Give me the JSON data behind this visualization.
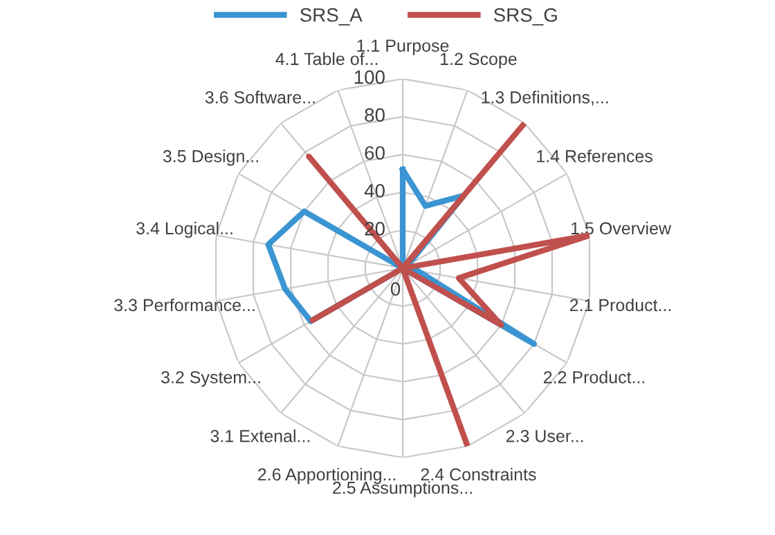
{
  "chart_data": {
    "type": "radar",
    "categories": [
      "1.1 Purpose",
      "1.2 Scope",
      "1.3 Definitions,...",
      "1.4 References",
      "1.5 Overview",
      "2.1 Product...",
      "2.2 Product...",
      "2.3 User...",
      "2.4 Constraints",
      "2.5 Assumptions...",
      "2.6 Apportioning...",
      "3.1 Extenal...",
      "3.2 System...",
      "3.3 Performance...",
      "3.4 Logical...",
      "3.5 Design...",
      "3.6 Software...",
      "4.1 Table of..."
    ],
    "series": [
      {
        "name": "SRS_A",
        "color": "#3a95d2",
        "values": [
          52,
          35,
          50,
          3,
          3,
          8,
          80,
          0,
          0,
          0,
          0,
          0,
          56,
          63,
          72,
          60,
          0,
          0
        ]
      },
      {
        "name": "SRS_G",
        "color": "#c0504d",
        "values": [
          0,
          0,
          100,
          0,
          100,
          30,
          60,
          0,
          100,
          0,
          0,
          0,
          55,
          0,
          0,
          0,
          77,
          0
        ]
      }
    ],
    "ylim": [
      0,
      100
    ],
    "yticks": [
      0,
      20,
      40,
      60,
      80,
      100
    ],
    "grid": true,
    "legend": "top",
    "marker": "none",
    "line_style": "solid"
  }
}
